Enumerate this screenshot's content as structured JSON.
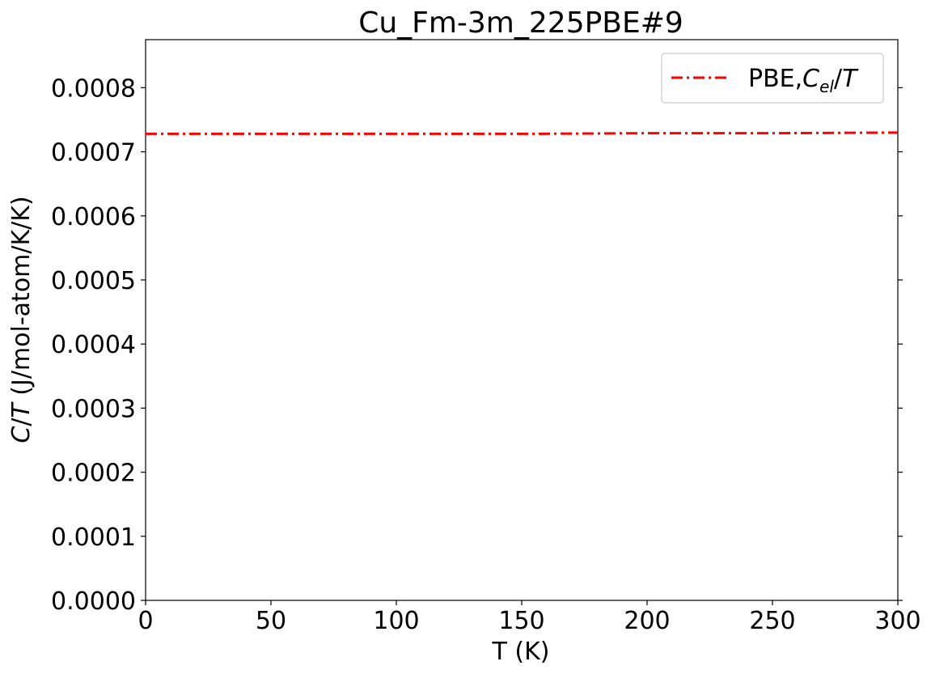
{
  "chart_data": {
    "type": "line",
    "title": "Cu_Fm-3m_225PBE#9",
    "xlabel": "T (K)",
    "ylabel": "C/T (J/mol-atom/K/K)",
    "xlim": [
      0,
      300
    ],
    "ylim": [
      0,
      0.000875
    ],
    "x_ticks": [
      "0",
      "50",
      "100",
      "150",
      "200",
      "250",
      "300"
    ],
    "y_ticks": [
      "0.0000",
      "0.0001",
      "0.0002",
      "0.0003",
      "0.0004",
      "0.0005",
      "0.0006",
      "0.0007",
      "0.0008"
    ],
    "x_tick_values": [
      0,
      50,
      100,
      150,
      200,
      250,
      300
    ],
    "y_tick_values": [
      0,
      0.0001,
      0.0002,
      0.0003,
      0.0004,
      0.0005,
      0.0006,
      0.0007,
      0.0008
    ],
    "grid": false,
    "legend_position": "top-right",
    "series": [
      {
        "name": "PBE,C_el/T",
        "color": "#ff0000",
        "line_style": "dash-dot",
        "x": [
          0,
          50,
          100,
          150,
          200,
          250,
          300
        ],
        "y": [
          0.000728,
          0.000728,
          0.000728,
          0.000728,
          0.000729,
          0.000729,
          0.00073
        ]
      }
    ]
  }
}
